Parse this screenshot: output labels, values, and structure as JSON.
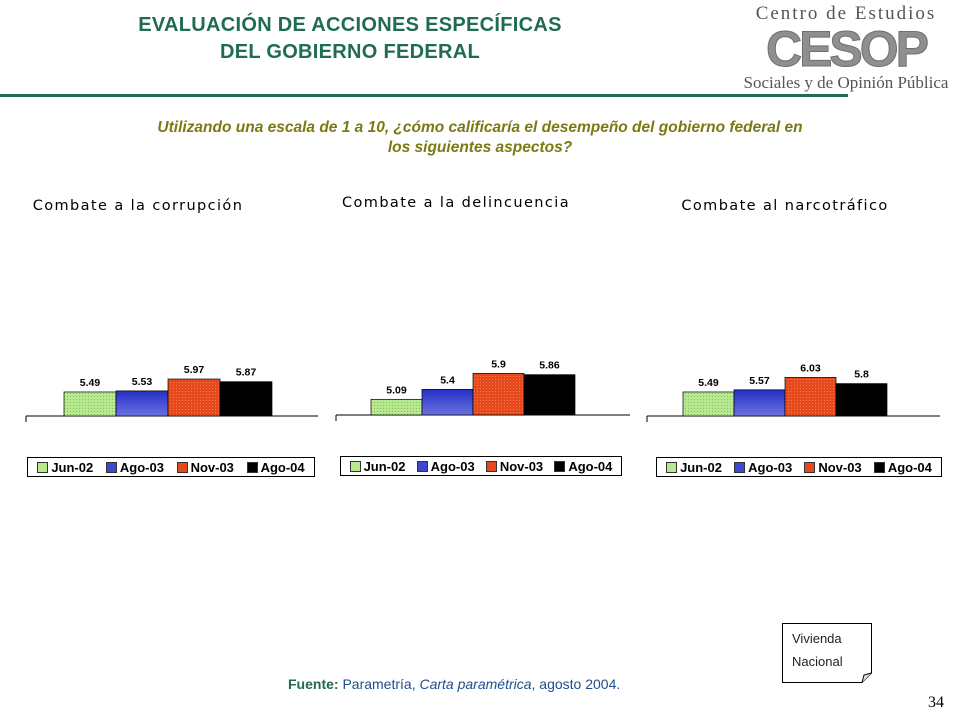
{
  "header": {
    "title_line1": "EVALUACIÓN DE ACCIONES ESPECÍFICAS",
    "title_line2": "DEL GOBIERNO FEDERAL"
  },
  "logo": {
    "top_text": "Centro de Estudios",
    "mark": "CESOP",
    "bottom_text": "Sociales y de Opinión Pública"
  },
  "question": {
    "line1": "Utilizando una escala de 1 a 10, ¿cómo calificaría el desempeño del gobierno federal en",
    "line2": "los siguientes aspectos?"
  },
  "colors": {
    "header_green": "#1f6b54",
    "question_olive": "#7a7a12",
    "jun02": "#b8e890",
    "ago03": "#3f46cf",
    "nov03": "#e6491b",
    "ago04": "#000000"
  },
  "chart_data": [
    {
      "type": "bar",
      "title": "Combate a la corrupción",
      "categories": [
        "Jun-02",
        "Ago-03",
        "Nov-03",
        "Ago-04"
      ],
      "values": [
        5.49,
        5.53,
        5.97,
        5.87
      ],
      "value_labels": [
        "5.49",
        "5.53",
        "5.97",
        "5.87"
      ],
      "legend": [
        "Jun-02",
        "Ago-03",
        "Nov-03",
        "Ago-04"
      ],
      "legend_position": "bottom"
    },
    {
      "type": "bar",
      "title": "Combate a la delincuencia",
      "categories": [
        "Jun-02",
        "Ago-03",
        "Nov-03",
        "Ago-04"
      ],
      "values": [
        5.09,
        5.4,
        5.9,
        5.86
      ],
      "value_labels": [
        "5.09",
        "5.4",
        "5.9",
        "5.86"
      ],
      "legend": [
        "Jun-02",
        "Ago-03",
        "Nov-03",
        "Ago-04"
      ],
      "legend_position": "bottom"
    },
    {
      "type": "bar",
      "title": "Combate al narcotráfico",
      "categories": [
        "Jun-02",
        "Ago-03",
        "Nov-03",
        "Ago-04"
      ],
      "values": [
        5.49,
        5.57,
        6.03,
        5.8
      ],
      "value_labels": [
        "5.49",
        "5.57",
        "6.03",
        "5.8"
      ],
      "legend": [
        "Jun-02",
        "Ago-03",
        "Nov-03",
        "Ago-04"
      ],
      "legend_position": "bottom"
    }
  ],
  "note": {
    "line1": "Vivienda",
    "line2": "Nacional"
  },
  "source": {
    "label": "Fuente:",
    "text1": " Parametría, ",
    "publication": "Carta paramétrica",
    "text2": ", agosto 2004."
  },
  "page_number": "34"
}
